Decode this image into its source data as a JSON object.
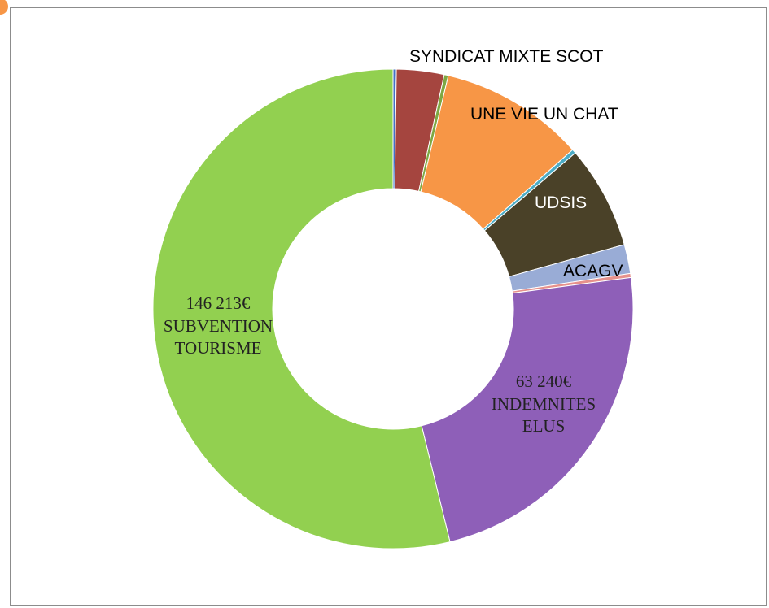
{
  "chart_data": {
    "type": "pie",
    "donut": true,
    "categories": [
      null,
      "SYNDICAT MIXTE SCOT",
      null,
      "UNE VIE UN CHAT",
      null,
      "UDSIS",
      "ACAGV",
      null,
      "INDEMNITES ELUS",
      "SUBVENTION TOURISME"
    ],
    "values": [
      600,
      8700,
      750,
      26500,
      750,
      18900,
      5300,
      750,
      63240,
      146213
    ],
    "value_labels": [
      null,
      null,
      null,
      null,
      null,
      null,
      null,
      null,
      "63 240€",
      "146 213€"
    ],
    "colors": [
      "#4472c4",
      "#a5453f",
      "#7ea843",
      "#f79646",
      "#4bacc6",
      "#4a4128",
      "#99acd6",
      "#e6918c",
      "#8e5fb8",
      "#92d050"
    ]
  }
}
